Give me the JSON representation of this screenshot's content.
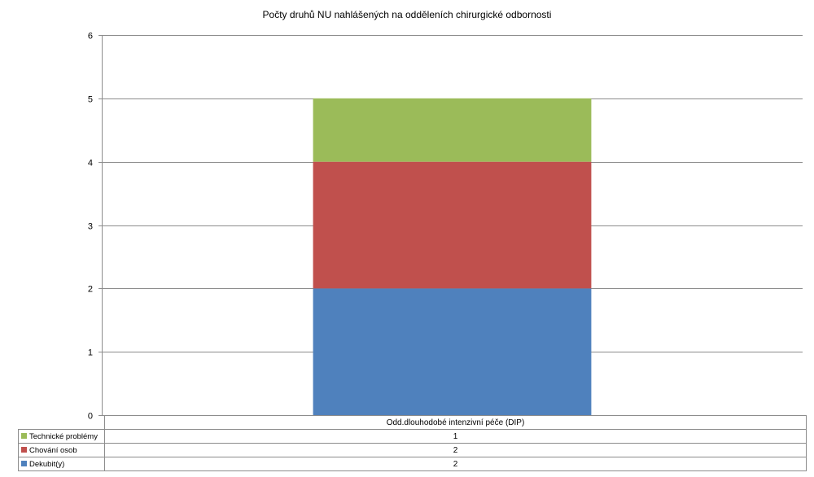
{
  "chart_data": {
    "type": "bar",
    "stacked": true,
    "title": "Počty druhů NU  nahlášených na odděleních chirurgické odbornosti",
    "categories": [
      "Odd.dlouhodobé intenzivní péče (DIP)"
    ],
    "series": [
      {
        "name": "Dekubit(y)",
        "values": [
          2
        ],
        "color": "#4F81BD"
      },
      {
        "name": "Chování osob",
        "values": [
          2
        ],
        "color": "#C0504D"
      },
      {
        "name": "Technické problémy",
        "values": [
          1
        ],
        "color": "#9BBB59"
      }
    ],
    "ylim": [
      0,
      6
    ],
    "yticks": [
      "0",
      "1",
      "2",
      "3",
      "4",
      "5",
      "6"
    ],
    "grid": true,
    "legend": "data table below chart"
  }
}
